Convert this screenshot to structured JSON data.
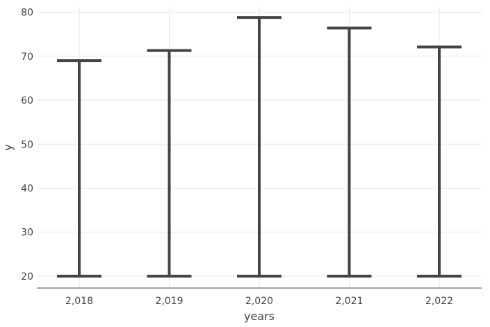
{
  "chart_data": {
    "type": "errorbar",
    "title": "",
    "xlabel": "years",
    "ylabel": "y",
    "categories": [
      "2,018",
      "2,019",
      "2,020",
      "2,021",
      "2,022"
    ],
    "x": [
      2018,
      2019,
      2020,
      2021,
      2022
    ],
    "series": [
      {
        "low": [
          20,
          20,
          20,
          20,
          20
        ],
        "high": [
          69,
          71.3,
          78.8,
          76.4,
          72.1
        ]
      }
    ],
    "ylim": [
      17.3,
      81.2
    ],
    "yticks": [
      20,
      30,
      40,
      50,
      60,
      70,
      80
    ],
    "ytick_labels": [
      "20",
      "30",
      "40",
      "50",
      "60",
      "70",
      "80"
    ],
    "grid": true,
    "legend": "none"
  }
}
